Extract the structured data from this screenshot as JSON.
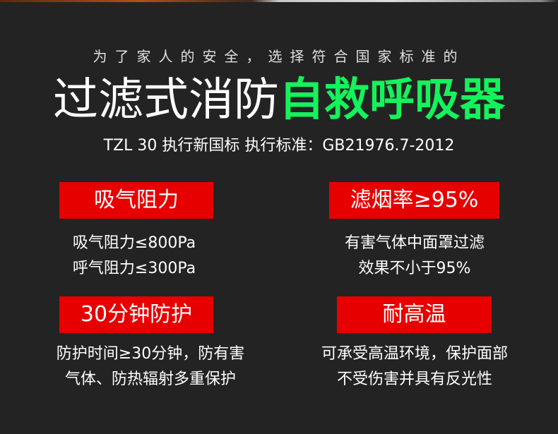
{
  "subtitle": "为了家人的安全，选择符合国家标准的",
  "title_white": "过滤式消防",
  "title_green": "自救呼吸器",
  "standard": "TZL 30 执行新国标  执行标准：GB21976.7-2012",
  "colors": {
    "background": "#232323",
    "accent_red": "#e60000",
    "accent_green": "#14f25c"
  },
  "features": [
    {
      "label": "吸气阻力",
      "lines": [
        "吸气阻力≤800Pa",
        "呼气阻力≤300Pa"
      ]
    },
    {
      "label": "滤烟率≥95%",
      "lines": [
        "有害气体中面罩过滤",
        "效果不小于95%"
      ]
    },
    {
      "label": "30分钟防护",
      "lines": [
        "防护时间≥30分钟，防有害",
        "气体、防热辐射多重保护"
      ]
    },
    {
      "label": "耐高温",
      "lines": [
        "可承受高温环境，保护面部",
        "不受伤害并具有反光性"
      ]
    }
  ]
}
